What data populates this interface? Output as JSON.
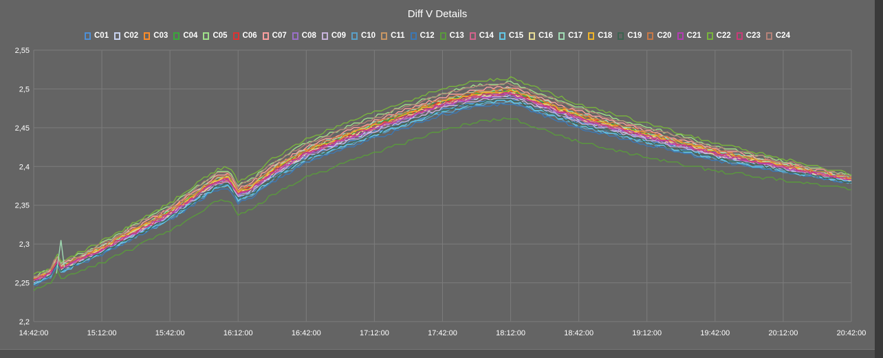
{
  "colors": {
    "background": "#646464",
    "grid": "#7c7c7c",
    "text": "#ffffff"
  },
  "chart_data": {
    "type": "line",
    "title": "Diff V Details",
    "xlabel": "",
    "ylabel": "",
    "ylim": [
      2.2,
      2.55
    ],
    "y_ticks": [
      "2,2",
      "2,25",
      "2,3",
      "2,35",
      "2,4",
      "2,45",
      "2,5",
      "2,55"
    ],
    "y_tick_values": [
      2.2,
      2.25,
      2.3,
      2.35,
      2.4,
      2.45,
      2.5,
      2.55
    ],
    "x_ticks": [
      "14:42:00",
      "15:12:00",
      "15:42:00",
      "16:12:00",
      "16:42:00",
      "17:12:00",
      "17:42:00",
      "18:12:00",
      "18:42:00",
      "19:12:00",
      "19:42:00",
      "20:12:00",
      "20:42:00"
    ],
    "x_range_minutes": [
      0,
      360
    ],
    "grid": true,
    "legend_position": "top-center",
    "base_curve": {
      "x_minutes": [
        0,
        8,
        10,
        12,
        30,
        60,
        80,
        86,
        90,
        96,
        105,
        120,
        150,
        180,
        195,
        210,
        240,
        270,
        300,
        330,
        360
      ],
      "y": [
        2.252,
        2.262,
        2.28,
        2.268,
        2.292,
        2.338,
        2.378,
        2.382,
        2.362,
        2.37,
        2.39,
        2.415,
        2.448,
        2.478,
        2.488,
        2.492,
        2.46,
        2.437,
        2.415,
        2.398,
        2.382
      ]
    },
    "series": [
      {
        "name": "C01",
        "color": "#4e8fd6",
        "offset": -0.003
      },
      {
        "name": "C02",
        "color": "#c9d4f0",
        "offset": 0.0
      },
      {
        "name": "C03",
        "color": "#ff8c28",
        "offset": 0.005
      },
      {
        "name": "C04",
        "color": "#3aa83a",
        "offset": 0.004
      },
      {
        "name": "C05",
        "color": "#9fe08a",
        "offset": 0.012
      },
      {
        "name": "C06",
        "color": "#e03232",
        "offset": 0.003
      },
      {
        "name": "C07",
        "color": "#ffa0a0",
        "offset": 0.008
      },
      {
        "name": "C08",
        "color": "#9a70c8",
        "offset": 0.0
      },
      {
        "name": "C09",
        "color": "#c8b4dc",
        "offset": -0.002
      },
      {
        "name": "C10",
        "color": "#5aa0c8",
        "offset": -0.006
      },
      {
        "name": "C11",
        "color": "#c89664",
        "offset": 0.002
      },
      {
        "name": "C12",
        "color": "#3c78b4",
        "offset": -0.008
      },
      {
        "name": "C13",
        "color": "#5a9a3c",
        "offset": -0.022
      },
      {
        "name": "C14",
        "color": "#d2648c",
        "offset": 0.001
      },
      {
        "name": "C15",
        "color": "#64c8e6",
        "offset": -0.005
      },
      {
        "name": "C16",
        "color": "#e6dc96",
        "offset": 0.002
      },
      {
        "name": "C17",
        "color": "#a0dcb4",
        "offset": 0.006
      },
      {
        "name": "C18",
        "color": "#f0b428",
        "offset": 0.004
      },
      {
        "name": "C19",
        "color": "#3c6450",
        "offset": -0.004
      },
      {
        "name": "C20",
        "color": "#c87846",
        "offset": 0.006
      },
      {
        "name": "C21",
        "color": "#b43cb4",
        "offset": 0.001
      },
      {
        "name": "C22",
        "color": "#78b43c",
        "offset": 0.016
      },
      {
        "name": "C23",
        "color": "#c83c78",
        "offset": 0.002
      },
      {
        "name": "C24",
        "color": "#b48278",
        "offset": 0.011
      }
    ]
  }
}
